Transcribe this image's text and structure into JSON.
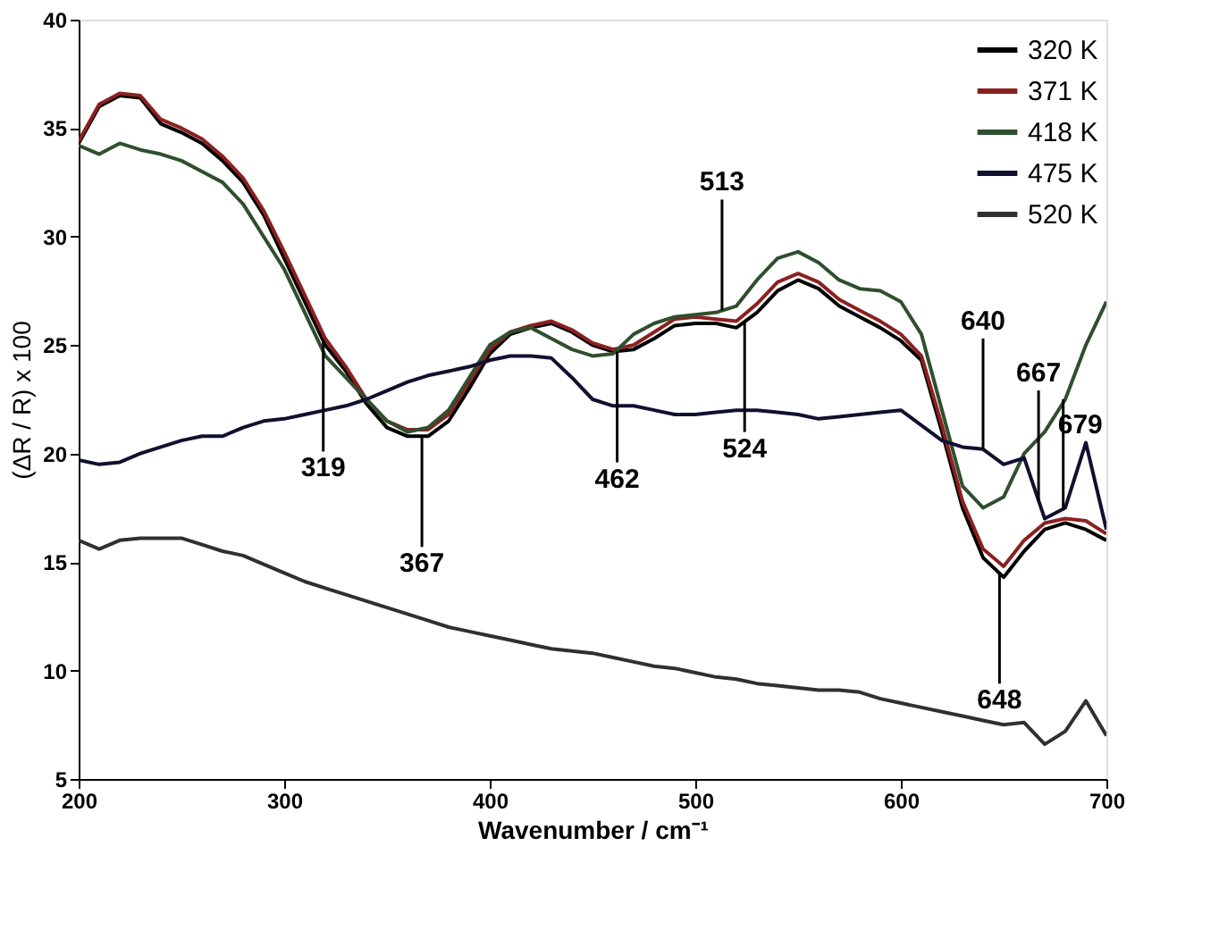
{
  "chart_data": {
    "type": "line",
    "xlabel": "Wavenumber / cm⁻¹",
    "ylabel": "(ΔR / R) x 100",
    "x": [
      200,
      210,
      220,
      230,
      240,
      250,
      260,
      270,
      280,
      290,
      300,
      310,
      320,
      330,
      340,
      350,
      360,
      370,
      380,
      390,
      400,
      410,
      420,
      430,
      440,
      450,
      460,
      470,
      480,
      490,
      500,
      510,
      520,
      530,
      540,
      550,
      560,
      570,
      580,
      590,
      600,
      610,
      620,
      630,
      640,
      650,
      660,
      670,
      680,
      690,
      700
    ],
    "series": [
      {
        "name": "320 K",
        "color": "#000000",
        "values": [
          34.3,
          36,
          36.5,
          36.4,
          35.2,
          34.8,
          34.3,
          33.5,
          32.5,
          31,
          29,
          27,
          25,
          23.8,
          22.3,
          21.2,
          20.8,
          20.8,
          21.5,
          23,
          24.6,
          25.5,
          25.8,
          26,
          25.6,
          25,
          24.7,
          24.8,
          25.3,
          25.9,
          26,
          26,
          25.8,
          26.5,
          27.5,
          28,
          27.6,
          26.8,
          26.3,
          25.8,
          25.2,
          24.3,
          21,
          17.5,
          15.2,
          14.3,
          15.5,
          16.5,
          16.8,
          16.5,
          16
        ]
      },
      {
        "name": "371 K",
        "color": "#8b2020",
        "values": [
          34.4,
          36.1,
          36.6,
          36.5,
          35.4,
          35,
          34.5,
          33.7,
          32.7,
          31.2,
          29.3,
          27.3,
          25.3,
          24,
          22.5,
          21.5,
          21.1,
          21.1,
          21.8,
          23.3,
          24.8,
          25.6,
          25.9,
          26.1,
          25.7,
          25.1,
          24.8,
          25,
          25.6,
          26.2,
          26.3,
          26.2,
          26.1,
          26.9,
          27.9,
          28.3,
          27.9,
          27.1,
          26.6,
          26.1,
          25.5,
          24.5,
          21.3,
          17.8,
          15.6,
          14.8,
          16,
          16.8,
          17,
          16.9,
          16.3
        ]
      },
      {
        "name": "418 K",
        "color": "#2f4f2f",
        "values": [
          34.2,
          33.8,
          34.3,
          34,
          33.8,
          33.5,
          33,
          32.5,
          31.5,
          30,
          28.5,
          26.5,
          24.5,
          23.5,
          22.5,
          21.5,
          21,
          21.2,
          22,
          23.5,
          25,
          25.6,
          25.8,
          25.3,
          24.8,
          24.5,
          24.6,
          25.5,
          26,
          26.3,
          26.4,
          26.5,
          26.8,
          28,
          29,
          29.3,
          28.8,
          28,
          27.6,
          27.5,
          27,
          25.5,
          22,
          18.5,
          17.5,
          18,
          20,
          21,
          22.5,
          25,
          27
        ]
      },
      {
        "name": "475 K",
        "color": "#101030",
        "values": [
          19.7,
          19.5,
          19.6,
          20,
          20.3,
          20.6,
          20.8,
          20.8,
          21.2,
          21.5,
          21.6,
          21.8,
          22,
          22.2,
          22.5,
          22.9,
          23.3,
          23.6,
          23.8,
          24,
          24.3,
          24.5,
          24.5,
          24.4,
          23.5,
          22.5,
          22.2,
          22.2,
          22,
          21.8,
          21.8,
          21.9,
          22,
          22,
          21.9,
          21.8,
          21.6,
          21.7,
          21.8,
          21.9,
          22,
          21.3,
          20.6,
          20.3,
          20.2,
          19.5,
          19.8,
          17,
          17.5,
          20.5,
          16.5
        ]
      },
      {
        "name": "520 K",
        "color": "#303030",
        "values": [
          16,
          15.6,
          16,
          16.1,
          16.1,
          16.1,
          15.8,
          15.5,
          15.3,
          14.9,
          14.5,
          14.1,
          13.8,
          13.5,
          13.2,
          12.9,
          12.6,
          12.3,
          12,
          11.8,
          11.6,
          11.4,
          11.2,
          11,
          10.9,
          10.8,
          10.6,
          10.4,
          10.2,
          10.1,
          9.9,
          9.7,
          9.6,
          9.4,
          9.3,
          9.2,
          9.1,
          9.1,
          9,
          8.7,
          8.5,
          8.3,
          8.1,
          7.9,
          7.7,
          7.5,
          7.6,
          6.6,
          7.2,
          8.6,
          7
        ]
      }
    ],
    "xlim": [
      200,
      700
    ],
    "xticks": [
      200,
      300,
      400,
      500,
      600,
      700
    ],
    "ylim": [
      5,
      40
    ],
    "yticks": [
      5,
      10,
      15,
      20,
      25,
      30,
      35,
      40
    ],
    "annotations": [
      {
        "text": "319",
        "x": 319,
        "y": 25.2
      },
      {
        "text": "367",
        "x": 367,
        "y": 20.8
      },
      {
        "text": "462",
        "x": 462,
        "y": 24.7
      },
      {
        "text": "513",
        "x": 513,
        "y": 26.6
      },
      {
        "text": "524",
        "x": 524,
        "y": 26.1
      },
      {
        "text": "640",
        "x": 640,
        "y": 20.2
      },
      {
        "text": "648",
        "x": 648,
        "y": 14.5
      },
      {
        "text": "667",
        "x": 667,
        "y": 17.8
      },
      {
        "text": "679",
        "x": 679,
        "y": 17.4
      }
    ],
    "grid": false,
    "legend": "top right",
    "marker": "none",
    "line_style": "solid"
  }
}
